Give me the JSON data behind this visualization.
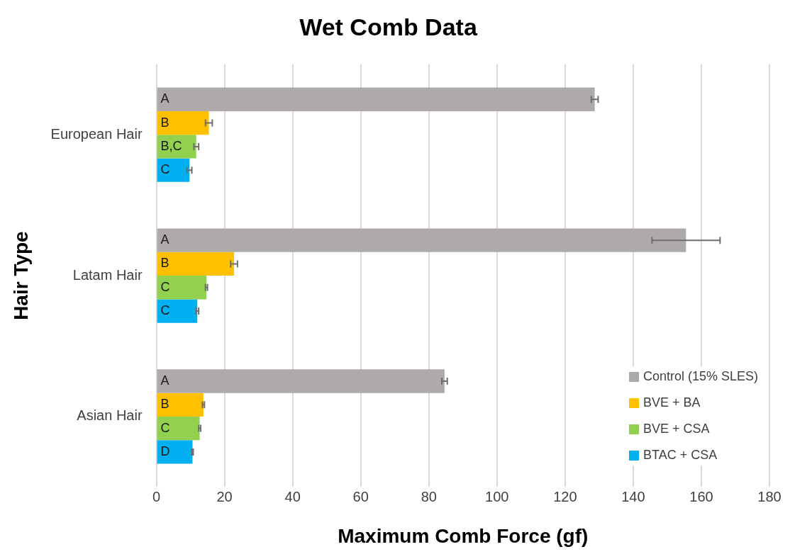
{
  "chart_data": {
    "type": "bar",
    "orientation": "horizontal",
    "title": "Wet Comb Data",
    "xlabel": "Maximum Comb Force (gf)",
    "ylabel": "Hair Type",
    "categories": [
      "European Hair",
      "Latam Hair",
      "Asian Hair"
    ],
    "series": [
      {
        "name": "Control (15% SLES)",
        "color": "#aeaaaa",
        "values": [
          128.7,
          155.5,
          84.6
        ],
        "errors": [
          1,
          10,
          0.8
        ],
        "value_labels": [
          "A",
          "A",
          "A"
        ]
      },
      {
        "name": "BVE + BA",
        "color": "#ffc000",
        "values": [
          15.4,
          22.8,
          13.8
        ],
        "errors": [
          1,
          1,
          0.3
        ],
        "value_labels": [
          "B",
          "B",
          "B"
        ]
      },
      {
        "name": "BVE + CSA",
        "color": "#92d050",
        "values": [
          11.7,
          14.7,
          12.7
        ],
        "errors": [
          0.7,
          0.3,
          0.3
        ],
        "value_labels": [
          "B,C",
          "C",
          "C"
        ]
      },
      {
        "name": "BTAC + CSA",
        "color": "#00b0f0",
        "values": [
          9.7,
          12.0,
          10.6
        ],
        "errors": [
          0.7,
          0.4,
          0.2
        ],
        "value_labels": [
          "C",
          "C",
          "D"
        ]
      }
    ],
    "xlim": [
      0,
      180
    ],
    "xticks": [
      0,
      20,
      40,
      60,
      80,
      100,
      120,
      140,
      160,
      180
    ],
    "grid": "x",
    "legend": "bottom right"
  }
}
